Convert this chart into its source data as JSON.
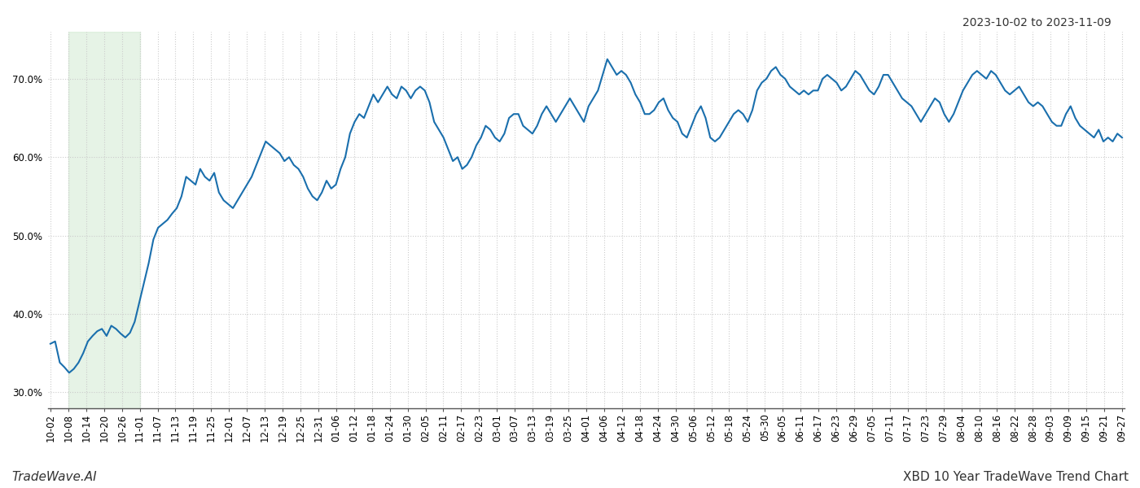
{
  "title_top_right": "2023-10-02 to 2023-11-09",
  "title_bottom_left": "TradeWave.AI",
  "title_bottom_right": "XBD 10 Year TradeWave Trend Chart",
  "line_color": "#1a6fad",
  "line_width": 1.5,
  "background_color": "#ffffff",
  "grid_color": "#cccccc",
  "highlight_color": "#c8e6c9",
  "highlight_alpha": 0.45,
  "ylim": [
    28.0,
    76.0
  ],
  "yticks": [
    30.0,
    40.0,
    50.0,
    60.0,
    70.0
  ],
  "tick_label_fontsize": 8.5,
  "annotation_fontsize": 10,
  "x_labels": [
    "10-02",
    "10-08",
    "10-14",
    "10-20",
    "10-26",
    "11-01",
    "11-07",
    "11-13",
    "11-19",
    "11-25",
    "12-01",
    "12-07",
    "12-13",
    "12-19",
    "12-25",
    "12-31",
    "01-06",
    "01-12",
    "01-18",
    "01-24",
    "01-30",
    "02-05",
    "02-11",
    "02-17",
    "02-23",
    "03-01",
    "03-07",
    "03-13",
    "03-19",
    "03-25",
    "04-01",
    "04-06",
    "04-12",
    "04-18",
    "04-24",
    "04-30",
    "05-06",
    "05-12",
    "05-18",
    "05-24",
    "05-30",
    "06-05",
    "06-11",
    "06-17",
    "06-23",
    "06-29",
    "07-05",
    "07-11",
    "07-17",
    "07-23",
    "07-29",
    "08-04",
    "08-10",
    "08-16",
    "08-22",
    "08-28",
    "09-03",
    "09-09",
    "09-15",
    "09-21",
    "09-27"
  ],
  "highlight_x_start_label": "10-08",
  "highlight_x_end_label": "11-01",
  "y_values": [
    36.2,
    36.5,
    33.8,
    33.2,
    32.5,
    33.0,
    33.8,
    35.0,
    36.5,
    37.2,
    37.8,
    38.1,
    37.2,
    38.5,
    38.1,
    37.5,
    37.0,
    37.6,
    39.0,
    41.5,
    44.0,
    46.5,
    49.5,
    51.0,
    51.5,
    52.0,
    52.8,
    53.5,
    55.0,
    57.5,
    57.0,
    56.5,
    58.5,
    57.5,
    57.0,
    58.0,
    55.5,
    54.5,
    54.0,
    53.5,
    54.5,
    55.5,
    56.5,
    57.5,
    59.0,
    60.5,
    62.0,
    61.5,
    61.0,
    60.5,
    59.5,
    60.0,
    59.0,
    58.5,
    57.5,
    56.0,
    55.0,
    54.5,
    55.5,
    57.0,
    56.0,
    56.5,
    58.5,
    60.0,
    63.0,
    64.5,
    65.5,
    65.0,
    66.5,
    68.0,
    67.0,
    68.0,
    69.0,
    68.0,
    67.5,
    69.0,
    68.5,
    67.5,
    68.5,
    69.0,
    68.5,
    67.0,
    64.5,
    63.5,
    62.5,
    61.0,
    59.5,
    60.0,
    58.5,
    59.0,
    60.0,
    61.5,
    62.5,
    64.0,
    63.5,
    62.5,
    62.0,
    63.0,
    65.0,
    65.5,
    65.5,
    64.0,
    63.5,
    63.0,
    64.0,
    65.5,
    66.5,
    65.5,
    64.5,
    65.5,
    66.5,
    67.5,
    66.5,
    65.5,
    64.5,
    66.5,
    67.5,
    68.5,
    70.5,
    72.5,
    71.5,
    70.5,
    71.0,
    70.5,
    69.5,
    68.0,
    67.0,
    65.5,
    65.5,
    66.0,
    67.0,
    67.5,
    66.0,
    65.0,
    64.5,
    63.0,
    62.5,
    64.0,
    65.5,
    66.5,
    65.0,
    62.5,
    62.0,
    62.5,
    63.5,
    64.5,
    65.5,
    66.0,
    65.5,
    64.5,
    66.0,
    68.5,
    69.5,
    70.0,
    71.0,
    71.5,
    70.5,
    70.0,
    69.0,
    68.5,
    68.0,
    68.5,
    68.0,
    68.5,
    68.5,
    70.0,
    70.5,
    70.0,
    69.5,
    68.5,
    69.0,
    70.0,
    71.0,
    70.5,
    69.5,
    68.5,
    68.0,
    69.0,
    70.5,
    70.5,
    69.5,
    68.5,
    67.5,
    67.0,
    66.5,
    65.5,
    64.5,
    65.5,
    66.5,
    67.5,
    67.0,
    65.5,
    64.5,
    65.5,
    67.0,
    68.5,
    69.5,
    70.5,
    71.0,
    70.5,
    70.0,
    71.0,
    70.5,
    69.5,
    68.5,
    68.0,
    68.5,
    69.0,
    68.0,
    67.0,
    66.5,
    67.0,
    66.5,
    65.5,
    64.5,
    64.0,
    64.0,
    65.5,
    66.5,
    65.0,
    64.0,
    63.5,
    63.0,
    62.5,
    63.5,
    62.0,
    62.5,
    62.0,
    63.0,
    62.5
  ]
}
